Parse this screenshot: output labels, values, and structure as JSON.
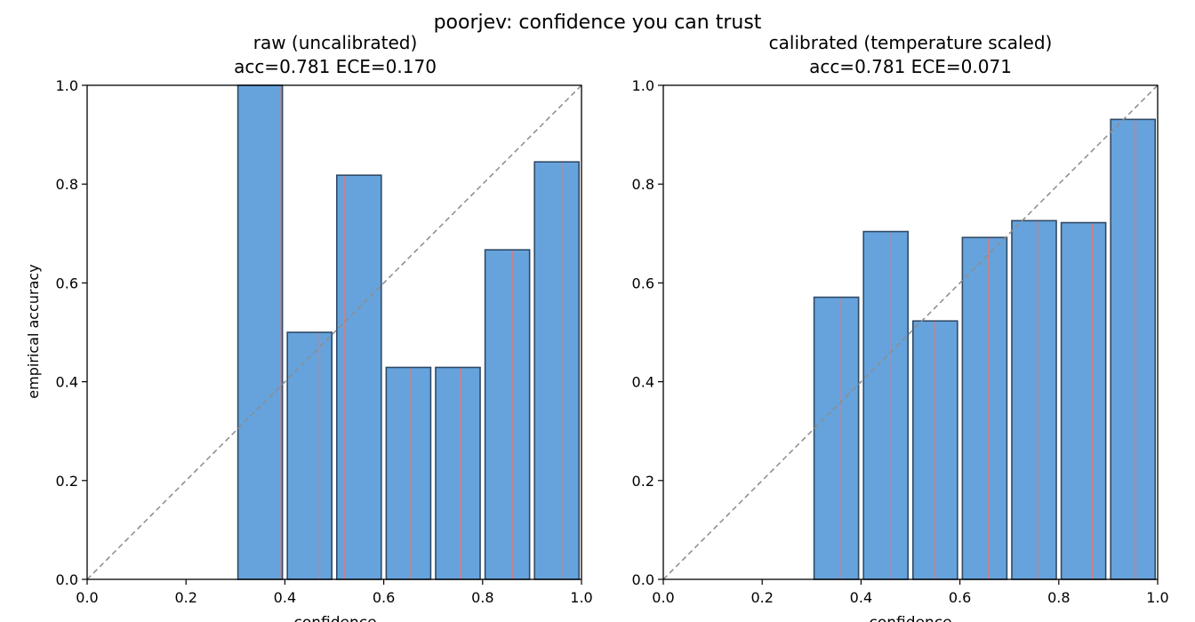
{
  "suptitle": "poorjev: confidence you can trust",
  "colors": {
    "bar_fill": "#66a3dc",
    "bar_edge": "#2f4a66",
    "conf_line": "#e07a7a",
    "diagonal": "#8c8c8c",
    "axes": "#000000"
  },
  "chart_data": [
    {
      "type": "bar",
      "title_line1": "raw (uncalibrated)",
      "title_line2": "acc=0.781  ECE=0.170",
      "xlabel": "confidence",
      "ylabel": "empirical accuracy",
      "xlim": [
        0,
        1
      ],
      "ylim": [
        0,
        1
      ],
      "xticks": [
        "0.0",
        "0.2",
        "0.4",
        "0.6",
        "0.8",
        "1.0"
      ],
      "yticks": [
        "0.0",
        "0.2",
        "0.4",
        "0.6",
        "0.8",
        "1.0"
      ],
      "bin_edges": [
        0.0,
        0.1,
        0.2,
        0.3,
        0.4,
        0.5,
        0.6,
        0.7,
        0.8,
        0.9,
        1.0
      ],
      "accuracy": [
        0,
        0,
        0,
        1.0,
        0.5,
        0.818,
        0.429,
        0.429,
        0.667,
        0.845
      ],
      "mean_confidence": [
        null,
        null,
        null,
        0.39,
        0.47,
        0.52,
        0.655,
        0.755,
        0.86,
        0.96
      ],
      "diagonal": true
    },
    {
      "type": "bar",
      "title_line1": "calibrated (temperature scaled)",
      "title_line2": "acc=0.781  ECE=0.071",
      "xlabel": "confidence",
      "ylabel": "",
      "xlim": [
        0,
        1
      ],
      "ylim": [
        0,
        1
      ],
      "xticks": [
        "0.0",
        "0.2",
        "0.4",
        "0.6",
        "0.8",
        "1.0"
      ],
      "yticks": [
        "0.0",
        "0.2",
        "0.4",
        "0.6",
        "0.8",
        "1.0"
      ],
      "bin_edges": [
        0.0,
        0.1,
        0.2,
        0.3,
        0.4,
        0.5,
        0.6,
        0.7,
        0.8,
        0.9,
        1.0
      ],
      "accuracy": [
        0,
        0,
        0,
        0.571,
        0.704,
        0.523,
        0.692,
        0.726,
        0.722,
        0.931
      ],
      "mean_confidence": [
        null,
        null,
        null,
        0.36,
        0.458,
        0.55,
        0.658,
        0.757,
        0.868,
        0.955
      ],
      "diagonal": true
    }
  ]
}
